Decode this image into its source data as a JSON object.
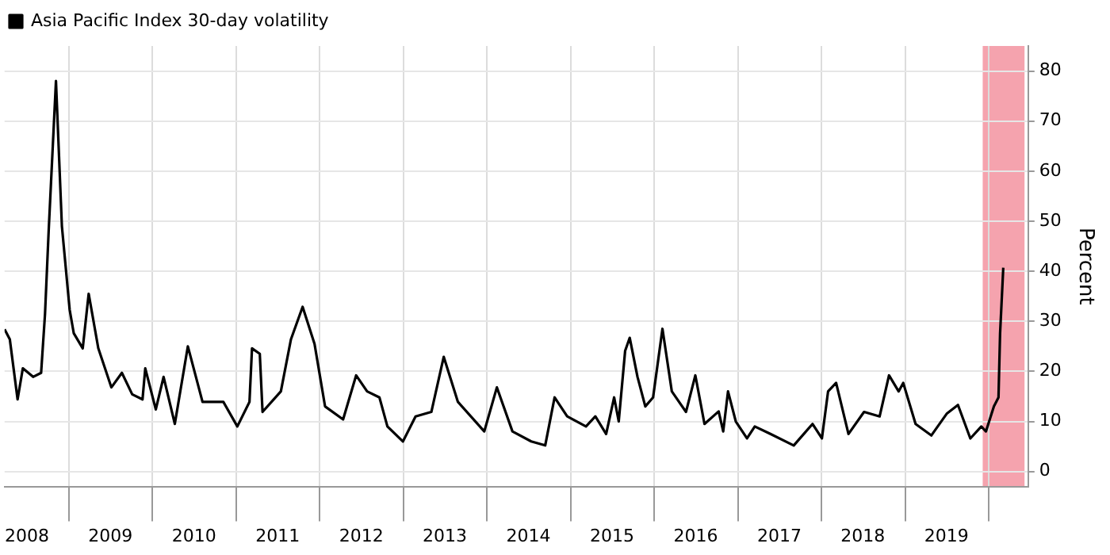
{
  "chart_data": {
    "type": "line",
    "ylabel": "Percent",
    "x": [
      "2008-03-25",
      "2008-04-17",
      "2008-05-21",
      "2008-06-13",
      "2008-07-28",
      "2008-09-01",
      "2008-09-18",
      "2008-10-04",
      "2008-11-05",
      "2008-12-01",
      "2009-01-04",
      "2009-01-22",
      "2009-03-02",
      "2009-03-28",
      "2009-05-09",
      "2009-07-05",
      "2009-08-20",
      "2009-10-04",
      "2009-11-18",
      "2009-11-30",
      "2010-01-15",
      "2010-02-18",
      "2010-04-08",
      "2010-06-04",
      "2010-08-07",
      "2010-11-06",
      "2011-01-06",
      "2011-02-28",
      "2011-03-11",
      "2011-04-14",
      "2011-04-26",
      "2011-07-15",
      "2011-08-28",
      "2011-10-18",
      "2011-12-09",
      "2012-01-24",
      "2012-04-12",
      "2012-06-08",
      "2012-07-26",
      "2012-09-18",
      "2012-10-23",
      "2012-12-30",
      "2013-02-23",
      "2013-05-03",
      "2013-06-26",
      "2013-08-27",
      "2013-12-20",
      "2014-02-13",
      "2014-04-22",
      "2014-07-13",
      "2014-09-12",
      "2014-10-23",
      "2014-12-17",
      "2015-03-09",
      "2015-04-19",
      "2015-06-05",
      "2015-07-10",
      "2015-07-30",
      "2015-08-27",
      "2015-09-16",
      "2015-10-20",
      "2015-11-23",
      "2015-12-27",
      "2016-02-06",
      "2016-03-18",
      "2016-05-19",
      "2016-06-29",
      "2016-08-08",
      "2016-10-09",
      "2016-10-29",
      "2016-11-19",
      "2016-12-23",
      "2017-02-10",
      "2017-03-16",
      "2017-05-23",
      "2017-09-02",
      "2017-11-23",
      "2018-01-03",
      "2018-01-30",
      "2018-03-06",
      "2018-04-29",
      "2018-07-06",
      "2018-09-12",
      "2018-10-23",
      "2018-12-04",
      "2018-12-24",
      "2019-02-16",
      "2019-04-26",
      "2019-07-03",
      "2019-08-20",
      "2019-10-13",
      "2019-11-30",
      "2019-12-20",
      "2020-01-24",
      "2020-02-13",
      "2020-02-20",
      "2020-03-05"
    ],
    "series": [
      {
        "name": "Asia Pacific Index 30-day volatility",
        "color": "#000000",
        "values": [
          28.4,
          26.4,
          14.4,
          20.6,
          18.9,
          19.7,
          31.4,
          48,
          78,
          49,
          32.3,
          27.6,
          24.6,
          35.5,
          24.6,
          16.8,
          19.7,
          15.4,
          14.4,
          20.6,
          12.4,
          18.9,
          9.5,
          25,
          13.9,
          13.9,
          9,
          13.9,
          24.6,
          23.5,
          11.9,
          16,
          26.4,
          32.9,
          25.5,
          13,
          10.4,
          19.2,
          16,
          14.8,
          9,
          6,
          11,
          11.9,
          22.9,
          13.9,
          8,
          16.8,
          8,
          6,
          5.2,
          14.8,
          11,
          9,
          11,
          7.5,
          14.8,
          10,
          24.1,
          26.7,
          18.9,
          13,
          14.8,
          28.5,
          16,
          11.9,
          19.2,
          9.5,
          12,
          8,
          16,
          10,
          6.6,
          9,
          7.5,
          5.2,
          9.5,
          6.6,
          16,
          17.7,
          7.5,
          11.9,
          11,
          19.2,
          16,
          17.7,
          9.5,
          7.2,
          11.6,
          13.3,
          6.6,
          9,
          8,
          13,
          14.8,
          27.6,
          40.7
        ]
      }
    ],
    "xlim": [
      "2008-03-25",
      "2020-06-22"
    ],
    "xticks": [
      {
        "value": "2008-07-01",
        "label": "2008"
      },
      {
        "value": "2009-01-01",
        "label": null
      },
      {
        "value": "2009-07-01",
        "label": "2009"
      },
      {
        "value": "2010-01-01",
        "label": null
      },
      {
        "value": "2010-07-01",
        "label": "2010"
      },
      {
        "value": "2011-01-01",
        "label": null
      },
      {
        "value": "2011-07-01",
        "label": "2011"
      },
      {
        "value": "2012-01-01",
        "label": null
      },
      {
        "value": "2012-07-01",
        "label": "2012"
      },
      {
        "value": "2013-01-01",
        "label": null
      },
      {
        "value": "2013-07-01",
        "label": "2013"
      },
      {
        "value": "2014-01-01",
        "label": null
      },
      {
        "value": "2014-07-01",
        "label": "2014"
      },
      {
        "value": "2015-01-01",
        "label": null
      },
      {
        "value": "2015-07-01",
        "label": "2015"
      },
      {
        "value": "2016-01-01",
        "label": null
      },
      {
        "value": "2016-07-01",
        "label": "2016"
      },
      {
        "value": "2017-01-01",
        "label": null
      },
      {
        "value": "2017-07-01",
        "label": "2017"
      },
      {
        "value": "2018-01-01",
        "label": null
      },
      {
        "value": "2018-07-01",
        "label": "2018"
      },
      {
        "value": "2019-01-01",
        "label": null
      },
      {
        "value": "2019-07-01",
        "label": "2019"
      },
      {
        "value": "2020-01-01",
        "label": null
      }
    ],
    "ylim": [
      -3,
      85
    ],
    "yticks": [
      0,
      10,
      20,
      30,
      40,
      50,
      60,
      70,
      80
    ],
    "bands": [
      {
        "axis": "x",
        "from": "2019-12-06",
        "to": "2020-06-06",
        "color": "#f5a3ae"
      }
    ],
    "grid": true,
    "legend": "top left",
    "marker": "none",
    "line_style": "solid"
  }
}
